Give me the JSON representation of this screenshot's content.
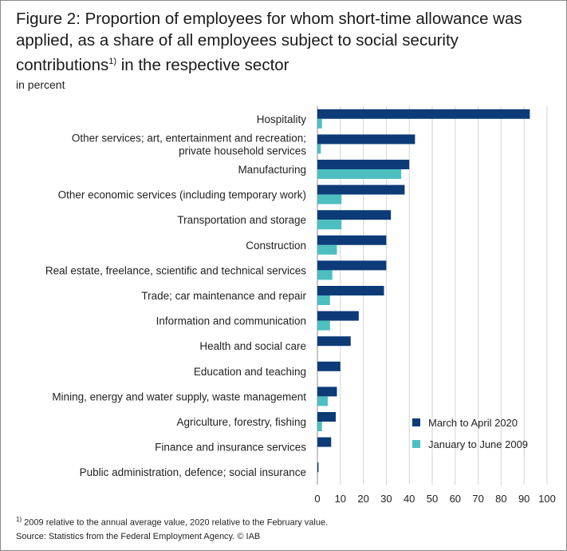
{
  "title": "Figure 2: Proportion of employees for whom short-time allowance was applied, as a share of all employees subject to social security contributions",
  "title_footnote_mark": "1)",
  "title_suffix": " in the respective sector",
  "unit_label": "in percent",
  "footnote_mark": "1)",
  "footnote_text": " 2009 relative to the annual average value, 2020 relative to the February value.",
  "source_text": "Source: Statistics from the Federal Employment Agency. © IAB",
  "colors": {
    "march_april_2020": "#0c3b78",
    "jan_june_2009": "#4dbfc0",
    "grid": "#d3d3d3"
  },
  "chart_data": {
    "type": "bar",
    "orientation": "horizontal",
    "categories": [
      [
        "Hospitality"
      ],
      [
        "Other services; art, entertainment and recreation;",
        "private household services"
      ],
      [
        "Manufacturing"
      ],
      [
        "Other economic services (including temporary work)"
      ],
      [
        "Transportation and storage"
      ],
      [
        "Construction"
      ],
      [
        "Real estate, freelance, scientific and technical services"
      ],
      [
        "Trade; car maintenance and repair"
      ],
      [
        "Information and communication"
      ],
      [
        "Health and social care"
      ],
      [
        "Education and teaching"
      ],
      [
        "Mining, energy and water supply, waste management"
      ],
      [
        "Agriculture, forestry, fishing"
      ],
      [
        "Finance and insurance services"
      ],
      [
        "Public administration, defence; social insurance"
      ]
    ],
    "series": [
      {
        "name": "March to April 2020",
        "values": [
          92.5,
          42.5,
          40,
          38,
          32,
          30,
          30,
          29,
          18,
          14.5,
          10,
          8.5,
          8,
          6,
          0.5
        ]
      },
      {
        "name": "January to June 2009",
        "values": [
          2,
          1.5,
          36.5,
          10.5,
          10.5,
          8.5,
          6.5,
          5.5,
          5.5,
          0,
          0,
          4.5,
          2,
          0,
          0
        ]
      }
    ],
    "xlim": [
      0,
      100
    ],
    "xticks": [
      "0",
      "10",
      "20",
      "30",
      "40",
      "50",
      "60",
      "70",
      "80",
      "90",
      "100"
    ],
    "grid": "vertical",
    "legend_position": "bottom-right"
  }
}
